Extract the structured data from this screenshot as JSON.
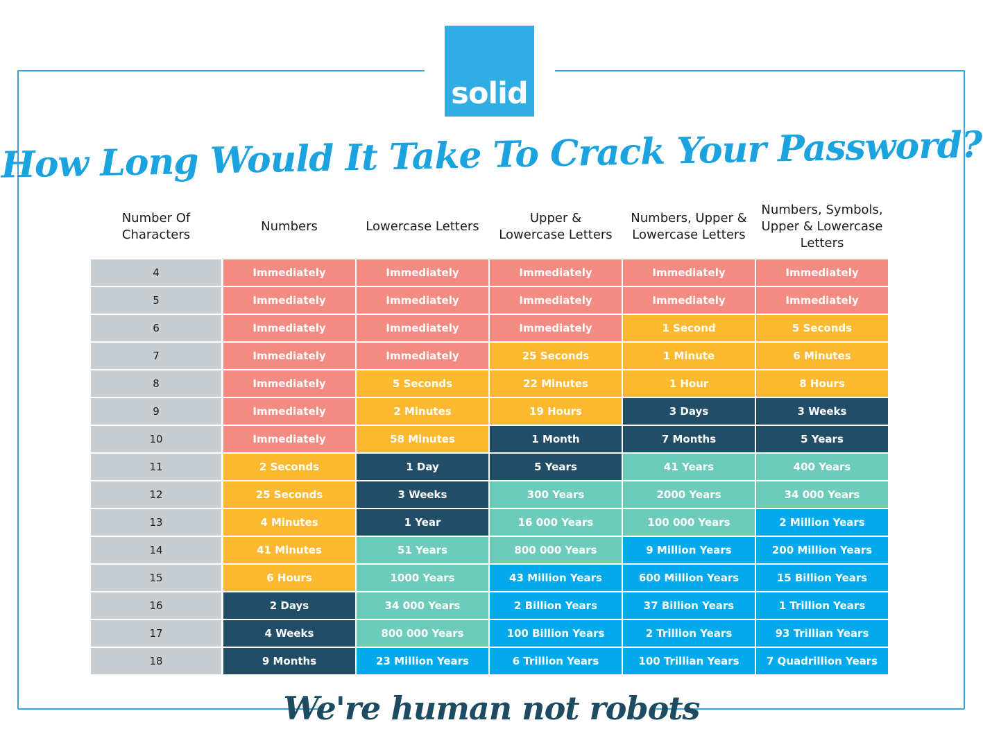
{
  "brand": {
    "logo_text": "solid"
  },
  "title": "How Long Would It Take To Crack Your Password?",
  "tagline": "We're human not robots",
  "colors": {
    "instant": "#f28b82",
    "short": "#fcb930",
    "medium": "#214e66",
    "long": "#6ccbba",
    "very_long": "#03aaeb",
    "char_col": "#c8cdd2",
    "brand": "#30ade3"
  },
  "chart_data": {
    "type": "table",
    "columns": [
      "Number Of Characters",
      "Numbers",
      "Lowercase Letters",
      "Upper & Lowercase Letters",
      "Numbers, Upper & Lowercase Letters",
      "Numbers, Symbols, Upper & Lowercase Letters"
    ],
    "rows": [
      {
        "chars": "4",
        "values": [
          "Immediately",
          "Immediately",
          "Immediately",
          "Immediately",
          "Immediately"
        ],
        "levels": [
          "instant",
          "instant",
          "instant",
          "instant",
          "instant"
        ]
      },
      {
        "chars": "5",
        "values": [
          "Immediately",
          "Immediately",
          "Immediately",
          "Immediately",
          "Immediately"
        ],
        "levels": [
          "instant",
          "instant",
          "instant",
          "instant",
          "instant"
        ]
      },
      {
        "chars": "6",
        "values": [
          "Immediately",
          "Immediately",
          "Immediately",
          "1 Second",
          "5 Seconds"
        ],
        "levels": [
          "instant",
          "instant",
          "instant",
          "short",
          "short"
        ]
      },
      {
        "chars": "7",
        "values": [
          "Immediately",
          "Immediately",
          "25 Seconds",
          "1 Minute",
          "6 Minutes"
        ],
        "levels": [
          "instant",
          "instant",
          "short",
          "short",
          "short"
        ]
      },
      {
        "chars": "8",
        "values": [
          "Immediately",
          "5 Seconds",
          "22 Minutes",
          "1 Hour",
          "8 Hours"
        ],
        "levels": [
          "instant",
          "short",
          "short",
          "short",
          "short"
        ]
      },
      {
        "chars": "9",
        "values": [
          "Immediately",
          "2 Minutes",
          "19 Hours",
          "3 Days",
          "3 Weeks"
        ],
        "levels": [
          "instant",
          "short",
          "short",
          "medium",
          "medium"
        ]
      },
      {
        "chars": "10",
        "values": [
          "Immediately",
          "58 Minutes",
          "1 Month",
          "7 Months",
          "5 Years"
        ],
        "levels": [
          "instant",
          "short",
          "medium",
          "medium",
          "medium"
        ]
      },
      {
        "chars": "11",
        "values": [
          "2 Seconds",
          "1 Day",
          "5 Years",
          "41 Years",
          "400 Years"
        ],
        "levels": [
          "short",
          "medium",
          "medium",
          "long",
          "long"
        ]
      },
      {
        "chars": "12",
        "values": [
          "25 Seconds",
          "3 Weeks",
          "300 Years",
          "2000 Years",
          "34 000 Years"
        ],
        "levels": [
          "short",
          "medium",
          "long",
          "long",
          "long"
        ]
      },
      {
        "chars": "13",
        "values": [
          "4 Minutes",
          "1 Year",
          "16 000 Years",
          "100 000 Years",
          "2 Million Years"
        ],
        "levels": [
          "short",
          "medium",
          "long",
          "long",
          "very_long"
        ]
      },
      {
        "chars": "14",
        "values": [
          "41 Minutes",
          "51 Years",
          "800 000 Years",
          "9 Million Years",
          "200 Million Years"
        ],
        "levels": [
          "short",
          "long",
          "long",
          "very_long",
          "very_long"
        ]
      },
      {
        "chars": "15",
        "values": [
          "6 Hours",
          "1000 Years",
          "43 Million Years",
          "600 Million Years",
          "15 Billion Years"
        ],
        "levels": [
          "short",
          "long",
          "very_long",
          "very_long",
          "very_long"
        ]
      },
      {
        "chars": "16",
        "values": [
          "2 Days",
          "34 000 Years",
          "2 Billion Years",
          "37 Billion Years",
          "1 Trillion Years"
        ],
        "levels": [
          "medium",
          "long",
          "very_long",
          "very_long",
          "very_long"
        ]
      },
      {
        "chars": "17",
        "values": [
          "4 Weeks",
          "800 000 Years",
          "100 Billion Years",
          "2 Trillion Years",
          "93 Trillian Years"
        ],
        "levels": [
          "medium",
          "long",
          "very_long",
          "very_long",
          "very_long"
        ]
      },
      {
        "chars": "18",
        "values": [
          "9 Months",
          "23 Million Years",
          "6 Trillion Years",
          "100 Trillian Years",
          "7 Quadrillion Years"
        ],
        "levels": [
          "medium",
          "very_long",
          "very_long",
          "very_long",
          "very_long"
        ]
      }
    ]
  }
}
